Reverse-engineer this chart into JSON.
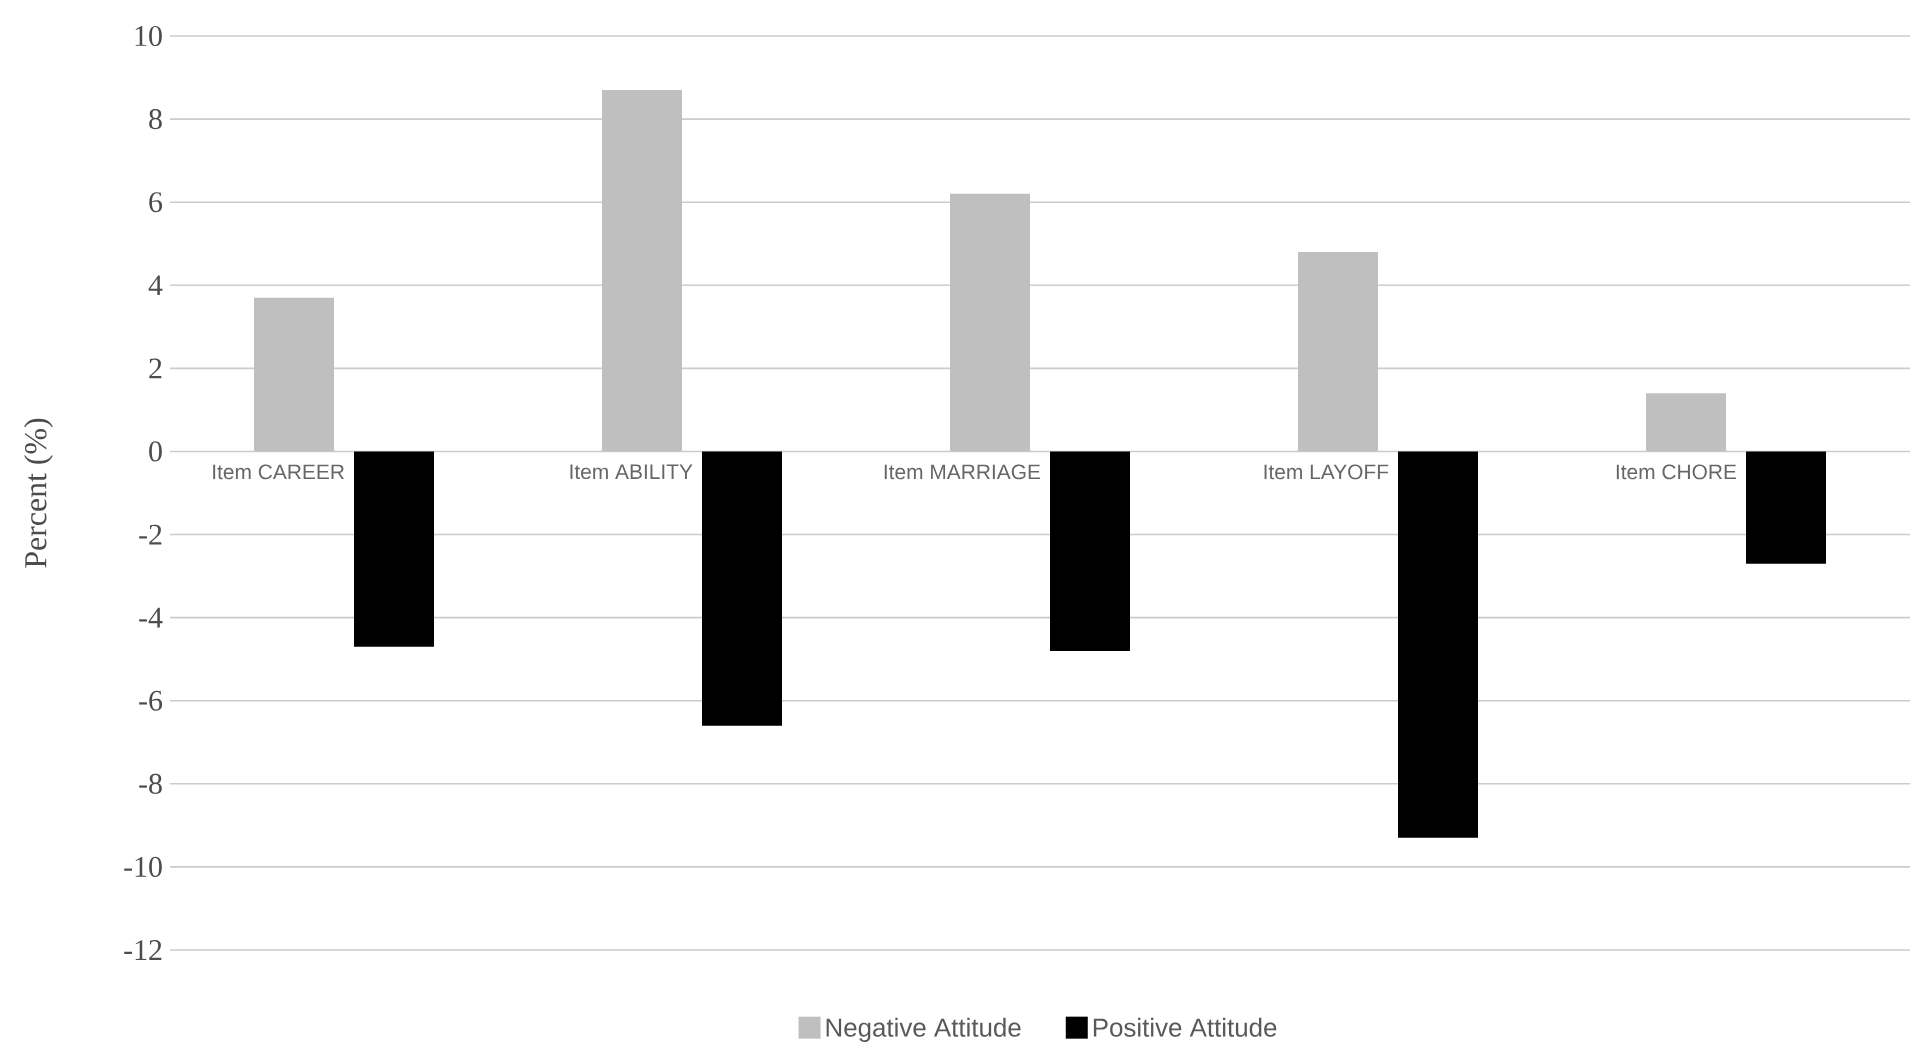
{
  "chart_data": {
    "type": "bar",
    "ylabel": "Percent (%)",
    "categories": [
      "Item CAREER",
      "Item ABILITY",
      "Item MARRIAGE",
      "Item LAYOFF",
      "Item CHORE"
    ],
    "series": [
      {
        "name": "Negative Attitude",
        "color": "#bfbfbf",
        "values": [
          3.7,
          8.7,
          6.2,
          4.8,
          1.4
        ]
      },
      {
        "name": "Positive Attitude",
        "color": "#000000",
        "values": [
          -4.7,
          -6.6,
          -4.8,
          -9.3,
          -2.7
        ]
      }
    ],
    "ylim": [
      -12,
      10
    ],
    "yticks": [
      -12,
      -10,
      -8,
      -6,
      -4,
      -2,
      0,
      2,
      4,
      6,
      8,
      10
    ],
    "grid": "y",
    "legend": "bottom"
  }
}
